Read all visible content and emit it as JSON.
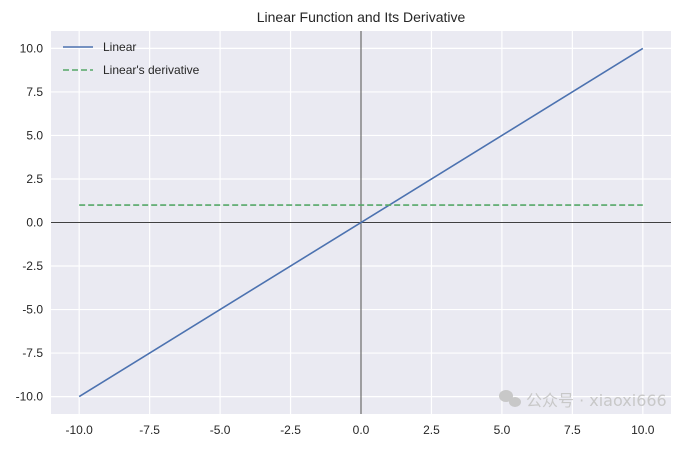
{
  "chart_data": {
    "type": "line",
    "title": "Linear Function and Its Derivative",
    "xlabel": "",
    "ylabel": "",
    "xlim": [
      -11,
      11
    ],
    "ylim": [
      -11,
      11
    ],
    "grid": true,
    "legend_position": "top-left",
    "x_ticks": [
      "-10.0",
      "-7.5",
      "-5.0",
      "-2.5",
      "0.0",
      "2.5",
      "5.0",
      "7.5",
      "10.0"
    ],
    "y_ticks": [
      "10.0",
      "7.5",
      "5.0",
      "2.5",
      "0.0",
      "-2.5",
      "-5.0",
      "-7.5",
      "-10.0"
    ],
    "series": [
      {
        "name": "Linear",
        "x": [
          -10,
          10
        ],
        "y": [
          -10,
          10
        ],
        "color": "#4c72b0",
        "style": "solid"
      },
      {
        "name": "Linear's derivative",
        "x": [
          -10,
          10
        ],
        "y": [
          1,
          1
        ],
        "color": "#55a868",
        "style": "dashed"
      }
    ],
    "reference_lines": {
      "x": 0,
      "y": 0,
      "color": "#000000"
    },
    "background": "#eaeaf2"
  },
  "watermark": "公众号 · xiaoxi666"
}
